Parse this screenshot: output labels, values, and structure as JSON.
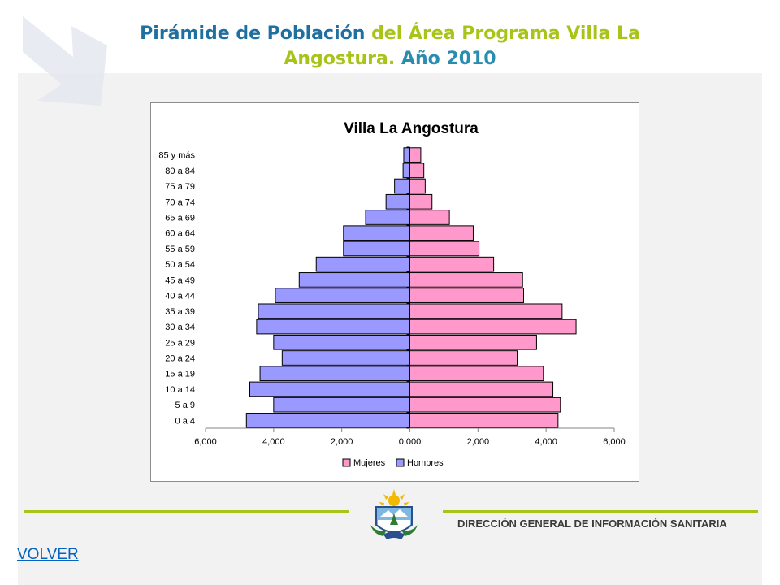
{
  "header": {
    "title_part1": "Pirámide de Población",
    "title_part2": "del Área Programa Villa La",
    "title_part3": "Angostura.",
    "title_part4": "Año 2010"
  },
  "footer": {
    "organization": "DIRECCIÓN GENERAL DE INFORMACIÓN SANITARIA",
    "back_link": "VOLVER"
  },
  "colors": {
    "mujeres": "#ff99cc",
    "hombres": "#9999ff",
    "accent_green": "#a8c418",
    "title_blue": "#1f6fa0"
  },
  "chart_data": {
    "type": "bar",
    "orientation": "horizontal-pyramid",
    "title": "Villa La Angostura",
    "categories": [
      "0 a 4",
      "5 a 9",
      "10 a 14",
      "15 a 19",
      "20 a 24",
      "25 a 29",
      "30 a 34",
      "35 a 39",
      "40 a 44",
      "45 a 49",
      "50 a 54",
      "55 a 59",
      "60 a 64",
      "65 a 69",
      "70 a 74",
      "75 a 79",
      "80 a 84",
      "85 y más"
    ],
    "series": [
      {
        "name": "Mujeres",
        "side": "right",
        "values": [
          4350,
          4420,
          4200,
          3920,
          3150,
          3720,
          4880,
          4470,
          3340,
          3310,
          2460,
          2030,
          1860,
          1160,
          650,
          450,
          410,
          320
        ]
      },
      {
        "name": "Hombres",
        "side": "left",
        "values": [
          4800,
          4000,
          4700,
          4400,
          3750,
          4000,
          4500,
          4450,
          3950,
          3250,
          2750,
          1950,
          1950,
          1300,
          700,
          450,
          200,
          180
        ]
      }
    ],
    "xlim": [
      -6000,
      6000
    ],
    "x_ticks": [
      -6000,
      -4000,
      -2000,
      0,
      2000,
      4000,
      6000
    ],
    "x_tick_labels": [
      "6,000",
      "4,000",
      "2,000",
      "0,000",
      "2,000",
      "4,000",
      "6,000"
    ],
    "legend": {
      "position": "bottom",
      "entries": [
        "Mujeres",
        "Hombres"
      ]
    },
    "grid": false
  }
}
